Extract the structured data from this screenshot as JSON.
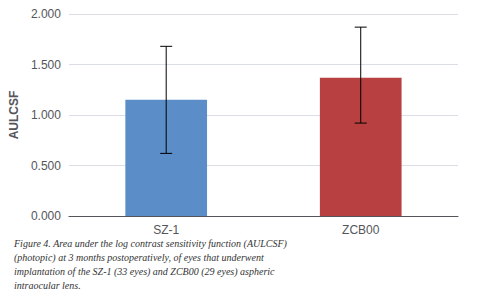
{
  "chart_data": {
    "type": "bar",
    "categories": [
      "SZ-1",
      "ZCB00"
    ],
    "values": [
      1.15,
      1.37
    ],
    "errors_upper": [
      0.53,
      0.5
    ],
    "errors_lower": [
      0.53,
      0.45
    ],
    "colors": [
      "#5b8ec9",
      "#b94040"
    ],
    "ylabel": "AULCSF",
    "ylim": [
      0.0,
      2.0
    ],
    "yticks": [
      {
        "value": 0.0,
        "label": "0.000"
      },
      {
        "value": 0.5,
        "label": "0.500"
      },
      {
        "value": 1.0,
        "label": "1.000"
      },
      {
        "value": 1.5,
        "label": "1.500"
      },
      {
        "value": 2.0,
        "label": "2.000"
      }
    ],
    "grid": true,
    "caption": [
      "Figure 4. Area under the log contrast sensitivity function (AULCSF)",
      "(photopic) at 3 months postoperatively, of eyes that underwent",
      "implantation of the SZ-1 (33 eyes) and ZCB00 (29 eyes) aspheric",
      "intraocular lens."
    ]
  }
}
